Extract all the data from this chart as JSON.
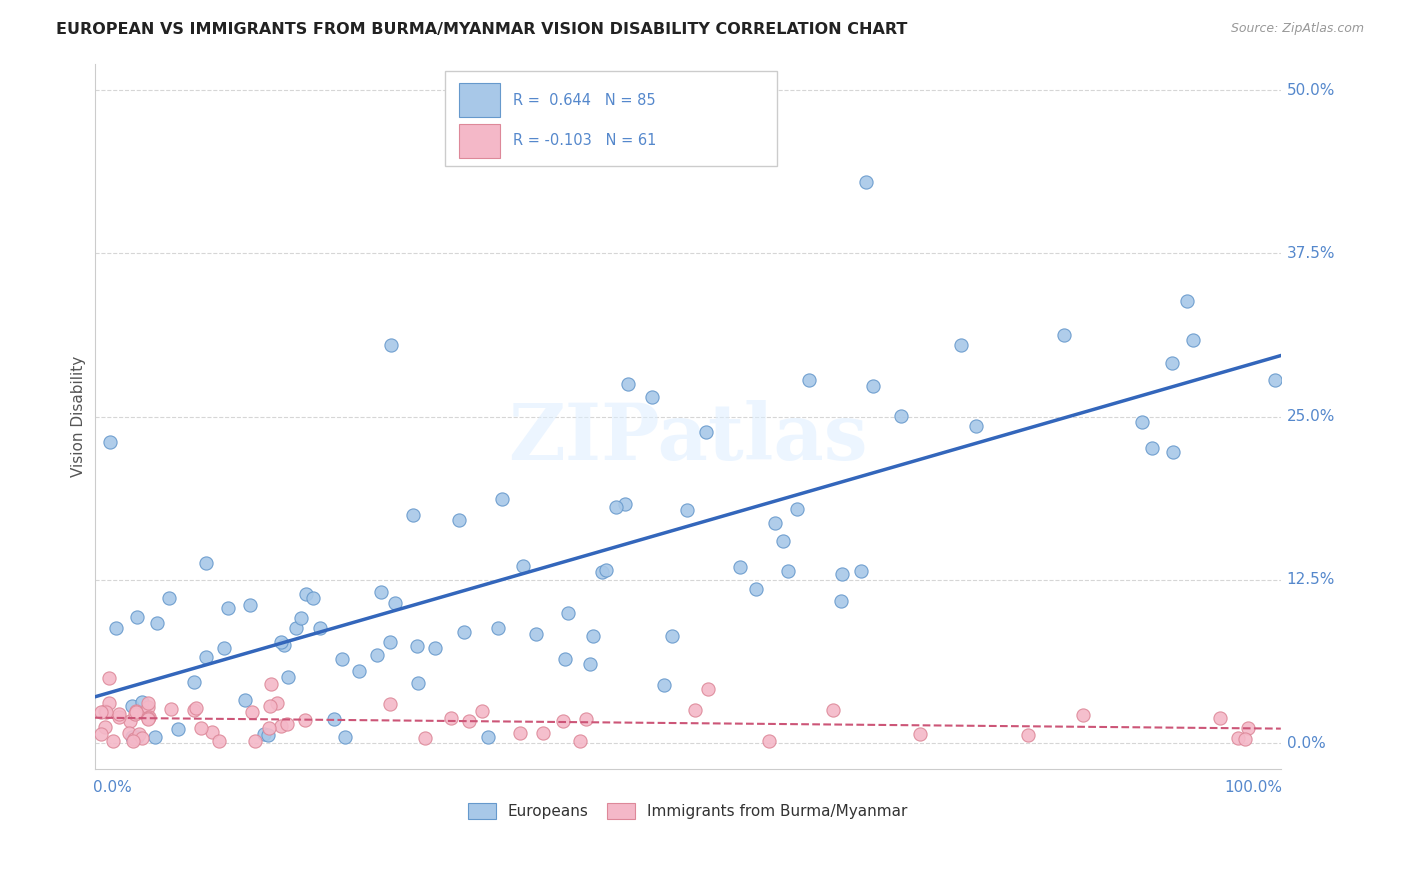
{
  "title": "EUROPEAN VS IMMIGRANTS FROM BURMA/MYANMAR VISION DISABILITY CORRELATION CHART",
  "source": "Source: ZipAtlas.com",
  "ylabel": "Vision Disability",
  "ytick_labels": [
    "0.0%",
    "12.5%",
    "25.0%",
    "37.5%",
    "50.0%"
  ],
  "ytick_values": [
    0.0,
    0.125,
    0.25,
    0.375,
    0.5
  ],
  "xlim": [
    0.0,
    1.0
  ],
  "ylim": [
    -0.02,
    0.52
  ],
  "r_european": 0.644,
  "n_european": 85,
  "r_burma": -0.103,
  "n_burma": 61,
  "european_fill_color": "#a8c8e8",
  "european_edge_color": "#6699cc",
  "burma_fill_color": "#f4b8c8",
  "burma_edge_color": "#dd8899",
  "european_line_color": "#3366bb",
  "burma_line_color": "#cc5577",
  "background_color": "#ffffff",
  "grid_color": "#cccccc",
  "watermark": "ZIPatlas",
  "legend_label_european": "Europeans",
  "legend_label_burma": "Immigrants from Burma/Myanmar",
  "axis_label_color": "#5588cc",
  "title_color": "#222222",
  "ylabel_color": "#555555"
}
